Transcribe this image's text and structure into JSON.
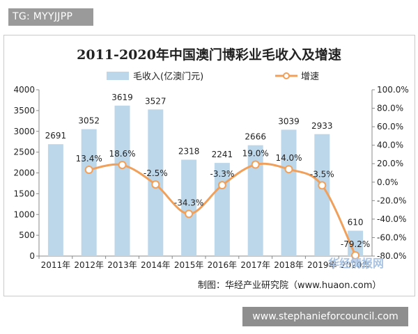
{
  "tag_top": "TG: MYYJJPP",
  "tag_bottom": "www.stephanieforcouncil.com",
  "source_note": "制图：华经产业研究院（www.huaon.com）",
  "watermark": "华经情报网",
  "colors": {
    "bar": "#bdd7ea",
    "line": "#f0a05a",
    "marker_fill": "#ffffff",
    "marker_stroke": "#f0a05a"
  },
  "chart_data": {
    "type": "bar",
    "title": "2011-2020年中国澳门博彩业毛收入及增速",
    "categories": [
      "2011年",
      "2012年",
      "2013年",
      "2014年",
      "2015年",
      "2016年",
      "2017年",
      "2018年",
      "2019年",
      "2020年"
    ],
    "series": [
      {
        "name": "毛收入(亿澳门元)",
        "kind": "bar",
        "axis": "left",
        "values": [
          2691,
          3052,
          3619,
          3527,
          2318,
          2241,
          2666,
          3039,
          2933,
          610
        ]
      },
      {
        "name": "增速",
        "kind": "line",
        "axis": "right",
        "values": [
          null,
          13.4,
          18.6,
          -2.5,
          -34.3,
          -3.3,
          19.0,
          14.0,
          -3.5,
          -79.2
        ],
        "labels": [
          "",
          "13.4%",
          "18.6%",
          "-2.5%",
          "-34.3%",
          "-3.3%",
          "19.0%",
          "14.0%",
          "-3.5%",
          "-79.2%"
        ]
      }
    ],
    "y_left": {
      "lim": [
        0,
        4000
      ],
      "ticks": [
        0,
        500,
        1000,
        1500,
        2000,
        2500,
        3000,
        3500,
        4000
      ],
      "tick_labels": [
        "0",
        "500",
        "1000",
        "1500",
        "2000",
        "2500",
        "3000",
        "3500",
        "4000"
      ]
    },
    "y_right": {
      "lim": [
        -80,
        100
      ],
      "ticks": [
        -80,
        -60,
        -40,
        -20,
        0,
        20,
        40,
        60,
        80,
        100
      ],
      "tick_labels": [
        "-80.0%",
        "-60.0%",
        "-40.0%",
        "-20.0%",
        "0.0%",
        "20.0%",
        "40.0%",
        "60.0%",
        "80.0%",
        "100.0%"
      ]
    },
    "legend_position": "top-center",
    "grid": false
  }
}
